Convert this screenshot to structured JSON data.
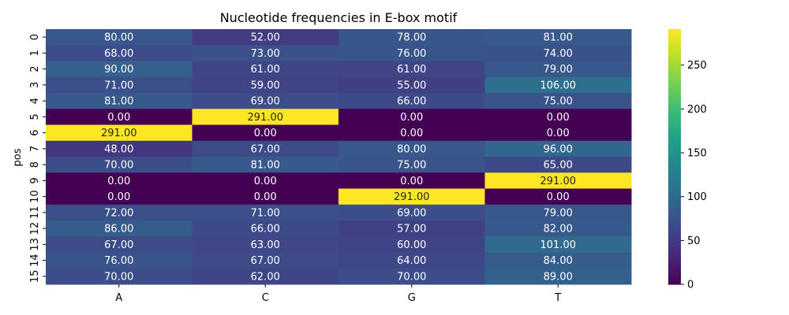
{
  "chart_data": {
    "type": "heatmap",
    "title": "Nucleotide frequencies in E-box motif",
    "xlabel": "",
    "ylabel": "pos",
    "columns": [
      "A",
      "C",
      "G",
      "T"
    ],
    "rows": [
      "0",
      "1",
      "2",
      "3",
      "4",
      "5",
      "6",
      "7",
      "8",
      "9",
      "10",
      "11",
      "12",
      "13",
      "14",
      "15"
    ],
    "values": [
      [
        80,
        52,
        78,
        81
      ],
      [
        68,
        73,
        76,
        74
      ],
      [
        90,
        61,
        61,
        79
      ],
      [
        71,
        59,
        55,
        106
      ],
      [
        81,
        69,
        66,
        75
      ],
      [
        0,
        291,
        0,
        0
      ],
      [
        291,
        0,
        0,
        0
      ],
      [
        48,
        67,
        80,
        96
      ],
      [
        70,
        81,
        75,
        65
      ],
      [
        0,
        0,
        0,
        291
      ],
      [
        0,
        0,
        291,
        0
      ],
      [
        72,
        71,
        69,
        79
      ],
      [
        86,
        66,
        57,
        82
      ],
      [
        67,
        63,
        60,
        101
      ],
      [
        76,
        67,
        64,
        84
      ],
      [
        70,
        62,
        70,
        89
      ]
    ],
    "value_format": "2 decimals",
    "colormap": "viridis",
    "colorbar": {
      "vmin": 0,
      "vmax": 291,
      "ticks": [
        0,
        50,
        100,
        150,
        200,
        250
      ]
    }
  }
}
